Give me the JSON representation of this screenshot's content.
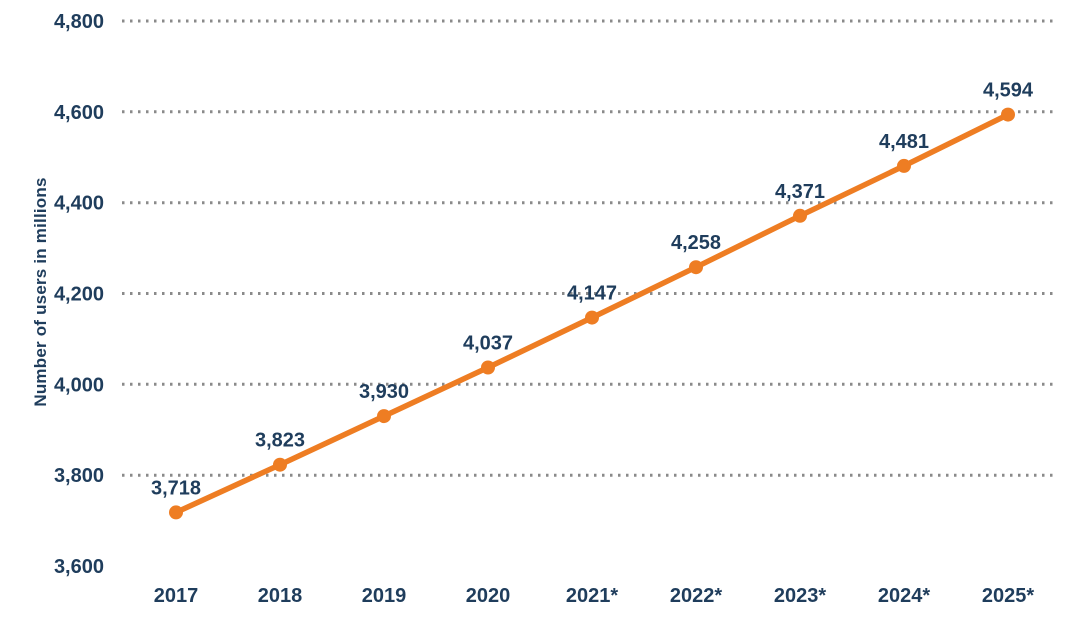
{
  "page": {
    "background_color": "#ffffff"
  },
  "chart_data": {
    "type": "line",
    "title": "",
    "xlabel": "",
    "ylabel": "Number of users in millions",
    "categories": [
      "2017",
      "2018",
      "2019",
      "2020",
      "2021*",
      "2022*",
      "2023*",
      "2024*",
      "2025*"
    ],
    "series": [
      {
        "name": "Number of users in millions",
        "values": [
          3718,
          3823,
          3930,
          4037,
          4147,
          4258,
          4371,
          4481,
          4594
        ]
      }
    ],
    "data_labels_visible": true,
    "ylim": [
      3600,
      4800
    ],
    "yticks": [
      3600,
      3800,
      4000,
      4200,
      4400,
      4600,
      4800
    ],
    "ytick_labels": [
      "3,600",
      "3,800",
      "4,000",
      "4,200",
      "4,400",
      "4,600",
      "4,800"
    ],
    "grid": "horizontal-dotted",
    "gridline_note": "no gridline at 3,600 baseline",
    "legend": "none",
    "line_color": "#EE7D23",
    "marker_color": "#EE7D23",
    "label_color": "#1F3D5C",
    "grid_color": "#8A8A8A"
  }
}
